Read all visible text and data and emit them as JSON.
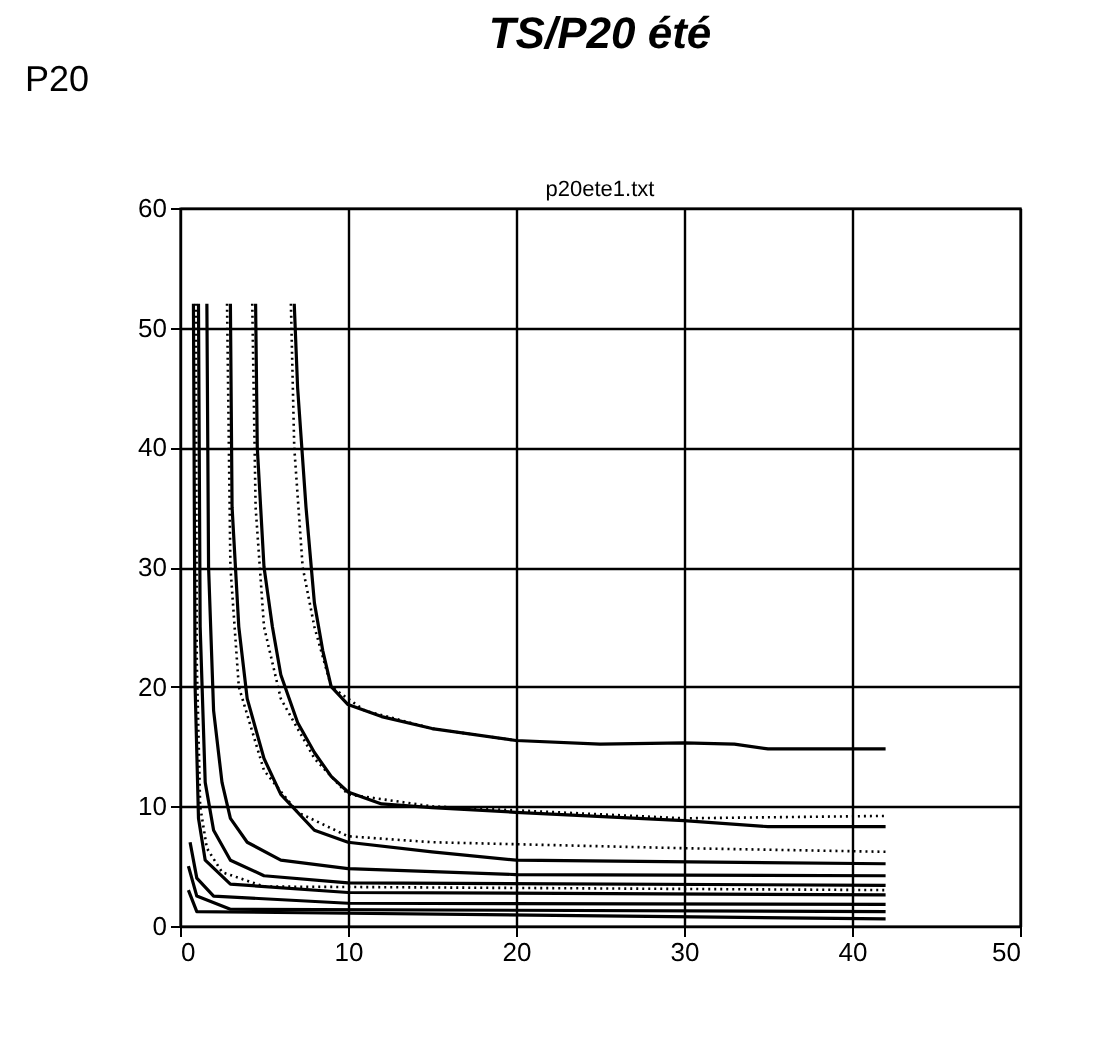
{
  "chart_data": {
    "type": "line",
    "title": "TS/P20 été",
    "subtitle": "p20ete1.txt",
    "ylabel": "P20",
    "xlim": [
      0,
      50
    ],
    "ylim": [
      0,
      60
    ],
    "xticks": [
      0,
      10,
      20,
      30,
      40,
      50
    ],
    "yticks": [
      0,
      10,
      20,
      30,
      40,
      50,
      60
    ],
    "grid": true,
    "series": [
      {
        "color": "#000000",
        "line_style": "solid",
        "x": [
          6.8,
          7,
          7.5,
          8,
          8.5,
          9,
          10,
          12,
          15,
          20,
          25,
          30,
          33,
          35,
          42
        ],
        "values": [
          52,
          45,
          35,
          27,
          23,
          20,
          18.5,
          17.5,
          16.5,
          15.5,
          15.2,
          15.3,
          15.2,
          14.8,
          14.8
        ]
      },
      {
        "color": "#000000",
        "line_style": "dotted",
        "x": [
          6.6,
          6.8,
          7.3,
          8,
          9,
          11,
          15,
          20
        ],
        "values": [
          52,
          40,
          30,
          25,
          20,
          18,
          16.5,
          15.5
        ]
      },
      {
        "color": "#000000",
        "line_style": "solid",
        "x": [
          4.5,
          4.6,
          5,
          5.5,
          6,
          7,
          8,
          9,
          10,
          12,
          15,
          20,
          30,
          35,
          42
        ],
        "values": [
          52,
          40,
          30,
          25,
          21,
          17,
          14.5,
          12.5,
          11.2,
          10.2,
          9.9,
          9.5,
          8.8,
          8.3,
          8.3
        ]
      },
      {
        "color": "#000000",
        "line_style": "dotted",
        "x": [
          4.3,
          4.5,
          5,
          6,
          8,
          10,
          15,
          30,
          42
        ],
        "values": [
          52,
          35,
          25,
          19,
          14,
          11,
          10,
          9,
          9.2
        ]
      },
      {
        "color": "#000000",
        "line_style": "solid",
        "x": [
          3,
          3.1,
          3.5,
          4,
          5,
          6,
          8,
          10,
          15,
          20,
          42
        ],
        "values": [
          52,
          35,
          25,
          19,
          14,
          11,
          8,
          7,
          6.2,
          5.5,
          5.2
        ]
      },
      {
        "color": "#000000",
        "line_style": "dotted",
        "x": [
          2.8,
          3,
          3.5,
          5,
          7,
          10,
          15,
          30,
          42
        ],
        "values": [
          52,
          30,
          20,
          13,
          9.5,
          7.5,
          7,
          6.5,
          6.2
        ]
      },
      {
        "color": "#000000",
        "line_style": "solid",
        "x": [
          1.6,
          1.7,
          2,
          2.5,
          3,
          4,
          6,
          10,
          20,
          42
        ],
        "values": [
          52,
          30,
          18,
          12,
          9,
          7,
          5.5,
          4.8,
          4.3,
          4.2
        ]
      },
      {
        "color": "#000000",
        "line_style": "solid",
        "x": [
          1.1,
          1.2,
          1.5,
          2,
          3,
          5,
          10,
          42
        ],
        "values": [
          52,
          25,
          12,
          8,
          5.5,
          4.2,
          3.6,
          3.4
        ]
      },
      {
        "color": "#000000",
        "line_style": "dotted",
        "x": [
          0.95,
          1.0,
          1.2,
          1.6,
          2.5,
          5,
          42
        ],
        "values": [
          52,
          22,
          10,
          6.5,
          4.5,
          3.3,
          3
        ]
      },
      {
        "color": "#000000",
        "line_style": "solid",
        "x": [
          0.8,
          0.9,
          1.1,
          1.5,
          3,
          10,
          42
        ],
        "values": [
          52,
          20,
          9,
          5.5,
          3.5,
          2.8,
          2.6
        ]
      },
      {
        "color": "#000000",
        "line_style": "solid",
        "x": [
          0.6,
          1,
          2,
          10,
          42
        ],
        "values": [
          7,
          4,
          2.5,
          1.9,
          1.8
        ]
      },
      {
        "color": "#000000",
        "line_style": "solid",
        "x": [
          0.5,
          1,
          3,
          42
        ],
        "values": [
          5,
          2.5,
          1.4,
          1.2
        ]
      },
      {
        "color": "#000000",
        "line_style": "solid",
        "x": [
          0.5,
          1,
          42
        ],
        "values": [
          3,
          1.2,
          0.6
        ]
      }
    ]
  }
}
